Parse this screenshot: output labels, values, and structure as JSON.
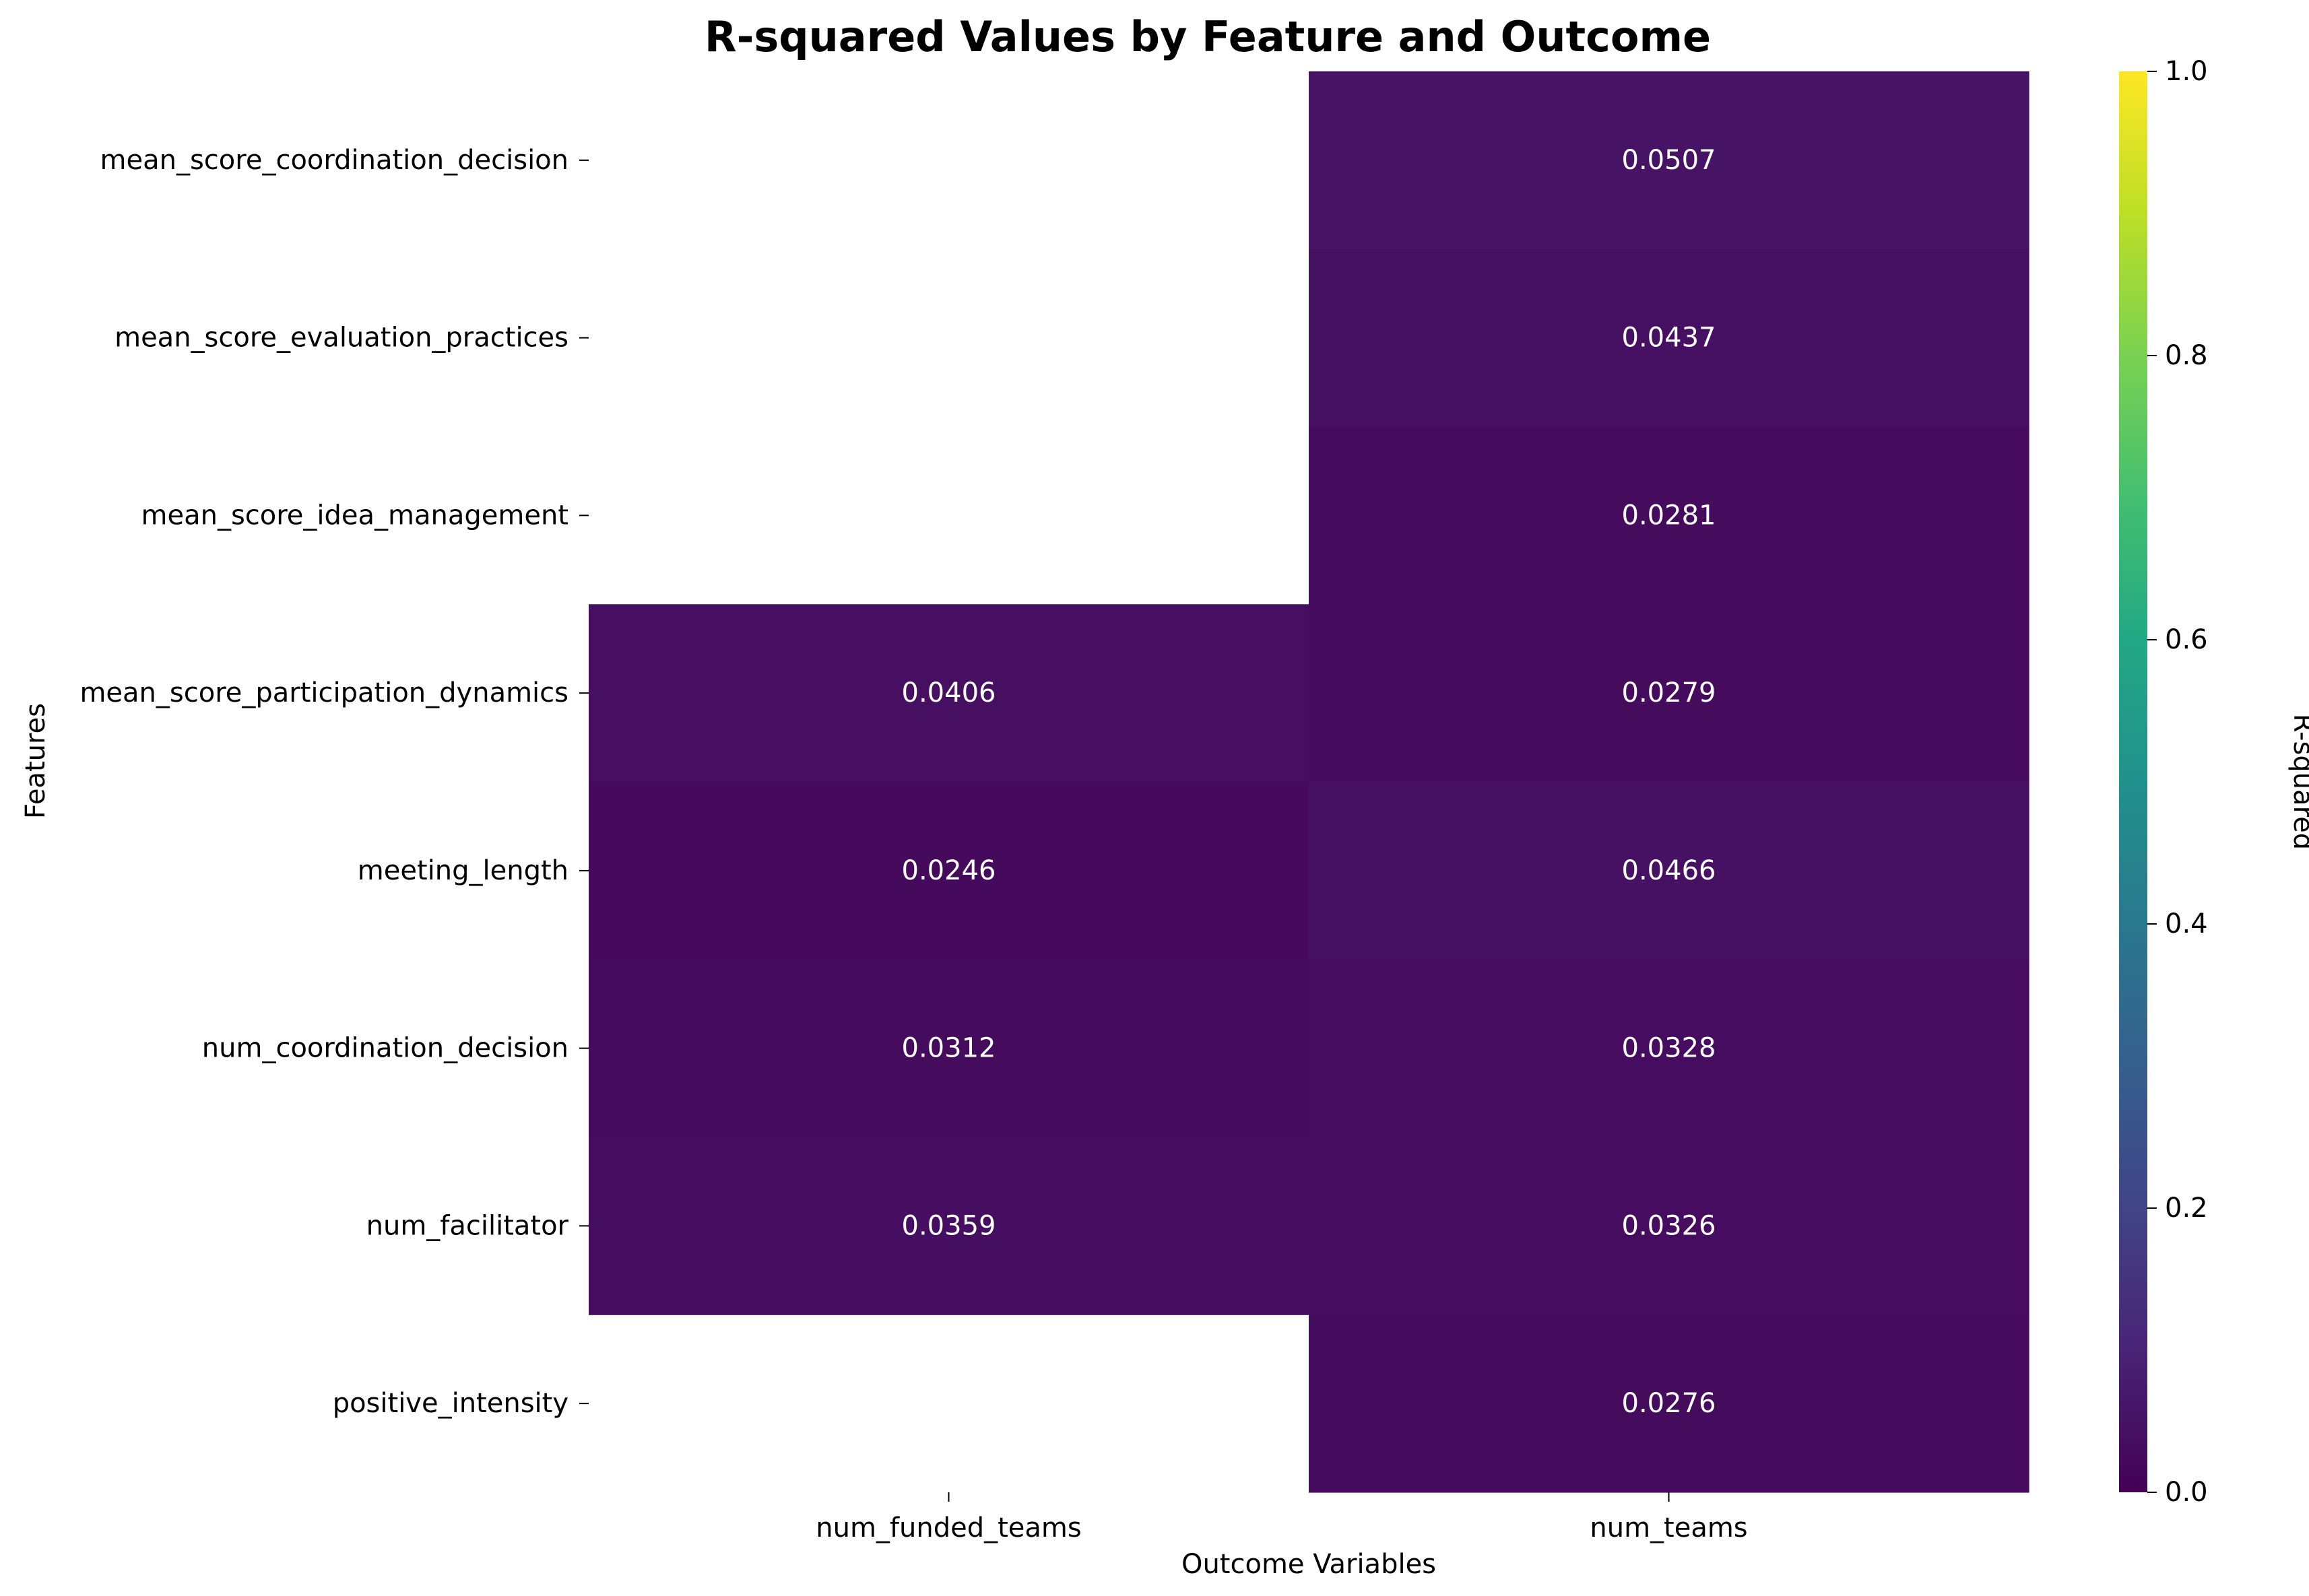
{
  "chart_data": {
    "type": "heatmap",
    "title": "R-squared Values by Feature and Outcome",
    "xlabel": "Outcome Variables",
    "ylabel": "Features",
    "colorbar_label": "R-squared",
    "colormap": "viridis",
    "vmin": 0.0,
    "vmax": 1.0,
    "colorbar_ticks": [
      "0.0",
      "0.2",
      "0.4",
      "0.6",
      "0.8",
      "1.0"
    ],
    "columns": [
      "num_funded_teams",
      "num_teams"
    ],
    "rows": [
      "mean_score_coordination_decision",
      "mean_score_evaluation_practices",
      "mean_score_idea_management",
      "mean_score_participation_dynamics",
      "meeting_length",
      "num_coordination_decision",
      "num_facilitator",
      "positive_intensity"
    ],
    "values": [
      [
        null,
        0.0507
      ],
      [
        null,
        0.0437
      ],
      [
        null,
        0.0281
      ],
      [
        0.0406,
        0.0279
      ],
      [
        0.0246,
        0.0466
      ],
      [
        0.0312,
        0.0328
      ],
      [
        0.0359,
        0.0326
      ],
      [
        null,
        0.0276
      ]
    ],
    "value_labels": [
      [
        null,
        "0.0507"
      ],
      [
        null,
        "0.0437"
      ],
      [
        null,
        "0.0281"
      ],
      [
        "0.0406",
        "0.0279"
      ],
      [
        "0.0246",
        "0.0466"
      ],
      [
        "0.0312",
        "0.0328"
      ],
      [
        "0.0359",
        "0.0326"
      ],
      [
        null,
        "0.0276"
      ]
    ]
  }
}
